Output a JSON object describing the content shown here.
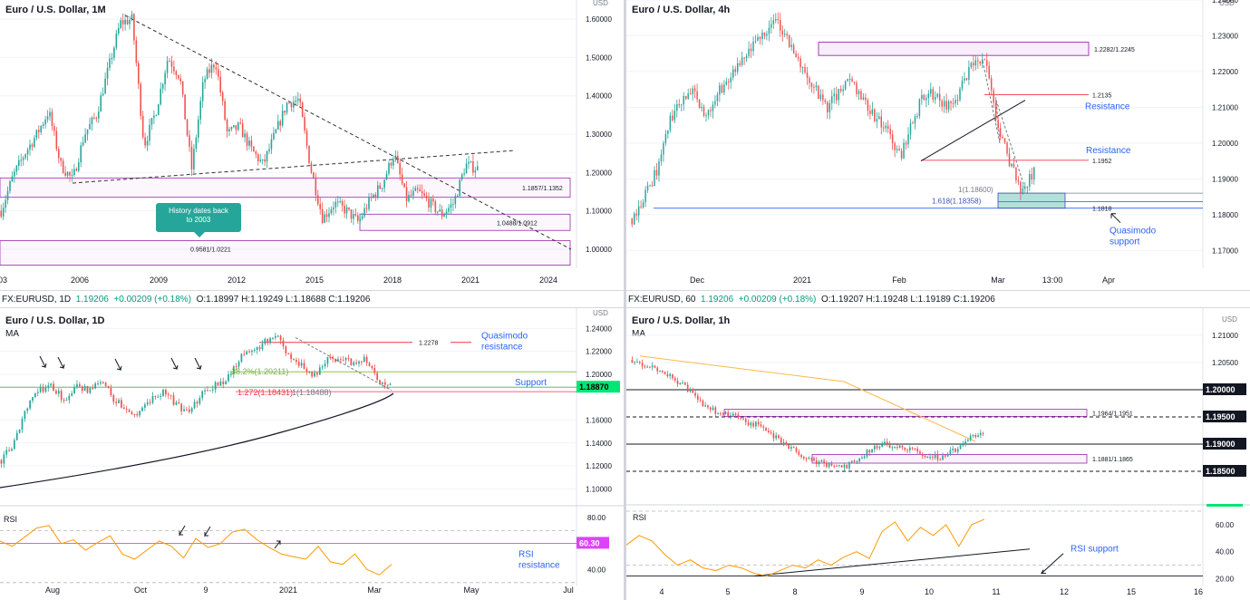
{
  "colors": {
    "bull": "#26a69a",
    "bear": "#ef5350",
    "purple": "#9c27b0",
    "blue_text": "#2962ff",
    "red_line": "#f23645",
    "green_line": "#8bc34a",
    "rsi": "#ff9800",
    "magenta": "#e040fb",
    "highlight_green": "#00e676"
  },
  "header": {
    "left": {
      "symbol": "FX:EURUSD, 1D",
      "last": "1.19206",
      "change": "+0.00209 (+0.18%)",
      "ohlc": "O:1.18997 H:1.19249 L:1.18688 C:1.19206"
    },
    "right": {
      "symbol": "FX:EURUSD, 60",
      "last": "1.19206",
      "change": "+0.00209 (+0.18%)",
      "ohlc": "O:1.19207 H:1.19248 L:1.19189 C:1.19206"
    }
  },
  "chart_data": [
    {
      "id": "monthly",
      "type": "candlestick",
      "title": "Euro / U.S. Dollar, 1M",
      "currency": "USD",
      "ylim": [
        0.95,
        1.65
      ],
      "y_ticks": [
        "1.60000",
        "1.50000",
        "1.40000",
        "1.30000",
        "1.20000",
        "1.10000",
        "1.00000"
      ],
      "x_ticks": [
        "03",
        "2006",
        "2009",
        "2012",
        "2015",
        "2018",
        "2021",
        "2024"
      ],
      "price_path": [
        1.1,
        1.19,
        1.25,
        1.3,
        1.36,
        1.22,
        1.18,
        1.3,
        1.35,
        1.47,
        1.59,
        1.6,
        1.27,
        1.36,
        1.5,
        1.45,
        1.21,
        1.44,
        1.49,
        1.3,
        1.32,
        1.26,
        1.22,
        1.3,
        1.38,
        1.39,
        1.21,
        1.08,
        1.12,
        1.1,
        1.07,
        1.13,
        1.17,
        1.25,
        1.13,
        1.15,
        1.12,
        1.09,
        1.12,
        1.22,
        1.21
      ],
      "boxes": [
        {
          "label": "1.1857/1.1352",
          "top": 1.1857,
          "bottom": 1.1352
        },
        {
          "label": "1.0488/1.0912",
          "top": 1.0912,
          "bottom": 1.0488
        },
        {
          "label": "0.9581/1.0221",
          "top": 1.0221,
          "bottom": 0.9581
        }
      ],
      "annotation": "History dates back to 2003"
    },
    {
      "id": "h4",
      "type": "candlestick",
      "title": "Euro / U.S. Dollar, 4h",
      "currency": "USD",
      "ylim": [
        1.165,
        1.24
      ],
      "y_ticks": [
        "1.24000",
        "1.23000",
        "1.22000",
        "1.21000",
        "1.20000",
        "1.19000",
        "1.18000",
        "1.17000"
      ],
      "x_ticks": [
        "Dec",
        "2021",
        "Feb",
        "Mar",
        "13:00",
        "Apr"
      ],
      "price_path": [
        1.179,
        1.185,
        1.192,
        1.205,
        1.212,
        1.214,
        1.207,
        1.214,
        1.218,
        1.222,
        1.227,
        1.232,
        1.234,
        1.227,
        1.221,
        1.215,
        1.21,
        1.214,
        1.218,
        1.212,
        1.207,
        1.203,
        1.196,
        1.206,
        1.214,
        1.213,
        1.21,
        1.215,
        1.222,
        1.223,
        1.204,
        1.195,
        1.186,
        1.192
      ],
      "levels": [
        {
          "label": "1.2135",
          "value": 1.2135,
          "tag": "Resistance"
        },
        {
          "label": "1.1952",
          "value": 1.1952,
          "tag": "Resistance"
        },
        {
          "label": "1.1818",
          "value": 1.1818,
          "tag": "Quasimodo support"
        }
      ],
      "box": {
        "label": "1.2282/1.2245",
        "top": 1.2282,
        "bottom": 1.2245
      },
      "fib_labels": [
        "1(1.18600)",
        "1.618(1.18358)"
      ]
    },
    {
      "id": "daily",
      "type": "candlestick",
      "title": "Euro / U.S. Dollar, 1D",
      "indicator": "MA",
      "currency": "USD",
      "ylim": [
        1.09,
        1.245
      ],
      "y_ticks": [
        "1.24000",
        "1.22000",
        "1.20000",
        "1.16000",
        "1.14000",
        "1.12000",
        "1.10000"
      ],
      "x_ticks": [
        "Aug",
        "Oct",
        "9",
        "2021",
        "Mar",
        "May",
        "Jul"
      ],
      "price_path": [
        1.125,
        1.14,
        1.17,
        1.185,
        1.19,
        1.178,
        1.19,
        1.186,
        1.193,
        1.178,
        1.17,
        1.165,
        1.178,
        1.185,
        1.173,
        1.165,
        1.185,
        1.19,
        1.195,
        1.215,
        1.22,
        1.228,
        1.232,
        1.215,
        1.208,
        1.198,
        1.212,
        1.215,
        1.21,
        1.215,
        1.195,
        1.19
      ],
      "levels": [
        {
          "label": "1.2278",
          "value": 1.2278,
          "tag": "Quasimodo resistance"
        },
        {
          "label": "38.2%(1.20211)",
          "value": 1.2021,
          "tag": "Support"
        },
        {
          "label": "1.18870",
          "value": 1.1887
        }
      ],
      "fib_label": "1.272(1.18431)",
      "fib_label_b": "1(1.18488)",
      "rsi": {
        "label": "RSI",
        "y_ticks": [
          "80.00",
          "40.00"
        ],
        "level": "60.30",
        "level_tag": "RSI resistance",
        "values": [
          62,
          58,
          65,
          72,
          74,
          60,
          63,
          55,
          61,
          66,
          52,
          48,
          55,
          62,
          58,
          49,
          64,
          57,
          60,
          69,
          71,
          63,
          57,
          52,
          50,
          48,
          58,
          46,
          44,
          52,
          40,
          36,
          44
        ]
      }
    },
    {
      "id": "hourly",
      "type": "candlestick",
      "title": "Euro / U.S. Dollar, 1h",
      "indicator": "MA",
      "currency": "USD",
      "ylim": [
        1.18,
        1.212
      ],
      "y_ticks": [
        "1.21000",
        "1.20500",
        "1.20000",
        "1.19500",
        "1.19000",
        "1.18500"
      ],
      "x_ticks": [
        "4",
        "5",
        "8",
        "9",
        "10",
        "11",
        "12",
        "15",
        "16"
      ],
      "price_path": [
        1.2055,
        1.2045,
        1.2035,
        1.202,
        1.2,
        1.1975,
        1.196,
        1.1955,
        1.194,
        1.1935,
        1.1915,
        1.19,
        1.188,
        1.187,
        1.186,
        1.1855,
        1.187,
        1.189,
        1.19,
        1.1895,
        1.189,
        1.188,
        1.1875,
        1.189,
        1.191,
        1.192
      ],
      "levels": [
        {
          "label": "1.20000",
          "value": 1.2
        },
        {
          "label": "1.19500",
          "value": 1.195
        },
        {
          "label": "1.19000",
          "value": 1.19
        },
        {
          "label": "1.18500",
          "value": 1.185
        }
      ],
      "boxes": [
        {
          "label": "1.1964/1.1951",
          "top": 1.1964,
          "bottom": 1.1951
        },
        {
          "label": "1.1881/1.1865",
          "top": 1.1881,
          "bottom": 1.1865
        }
      ],
      "rsi": {
        "label": "RSI",
        "y_ticks": [
          "60.00",
          "40.00",
          "20.00"
        ],
        "tag": "RSI support",
        "values": [
          45,
          52,
          48,
          38,
          30,
          34,
          28,
          26,
          30,
          28,
          24,
          22,
          26,
          30,
          28,
          34,
          30,
          36,
          40,
          35,
          55,
          62,
          48,
          58,
          52,
          60,
          44,
          60,
          64
        ]
      }
    }
  ]
}
